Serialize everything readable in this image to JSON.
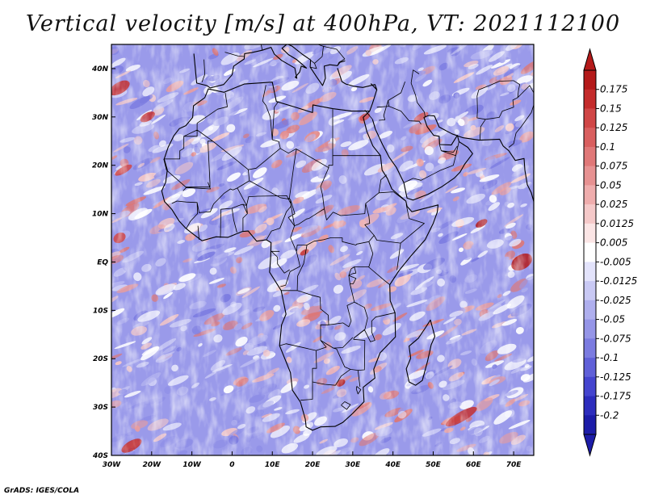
{
  "title": "Vertical velocity [m/s] at 400hPa, VT: 2021112100",
  "footer": "GrADS: IGES/COLA",
  "map": {
    "lon_range": [
      -30,
      75
    ],
    "lat_range": [
      -40,
      45
    ],
    "lat_ticks": [
      {
        "value": 40,
        "label": "40N"
      },
      {
        "value": 30,
        "label": "30N"
      },
      {
        "value": 20,
        "label": "20N"
      },
      {
        "value": 10,
        "label": "10N"
      },
      {
        "value": 0,
        "label": "EQ"
      },
      {
        "value": -10,
        "label": "10S"
      },
      {
        "value": -20,
        "label": "20S"
      },
      {
        "value": -30,
        "label": "30S"
      },
      {
        "value": -40,
        "label": "40S"
      }
    ],
    "lon_ticks": [
      {
        "value": -30,
        "label": "30W"
      },
      {
        "value": -20,
        "label": "20W"
      },
      {
        "value": -10,
        "label": "10W"
      },
      {
        "value": 0,
        "label": "0"
      },
      {
        "value": 10,
        "label": "10E"
      },
      {
        "value": 20,
        "label": "20E"
      },
      {
        "value": 30,
        "label": "30E"
      },
      {
        "value": 40,
        "label": "40E"
      },
      {
        "value": 50,
        "label": "50E"
      },
      {
        "value": 60,
        "label": "60E"
      },
      {
        "value": 70,
        "label": "70E"
      }
    ]
  },
  "colorbar": {
    "levels": [
      "0.175",
      "0.15",
      "0.125",
      "0.1",
      "0.075",
      "0.05",
      "0.025",
      "0.0125",
      "0.005",
      "-0.005",
      "-0.0125",
      "-0.025",
      "-0.05",
      "-0.075",
      "-0.1",
      "-0.125",
      "-0.175",
      "-0.2"
    ],
    "colors": [
      "#b41a1a",
      "#c42c2c",
      "#d04646",
      "#d95f5f",
      "#e07878",
      "#e79292",
      "#efadad",
      "#f5c9c9",
      "#fbe5e5",
      "#ffffff",
      "#e3e3fb",
      "#c9c9f4",
      "#afafee",
      "#9595e7",
      "#7b7be0",
      "#6060d8",
      "#4545cf",
      "#2d2dbd",
      "#1c1ca8"
    ]
  }
}
